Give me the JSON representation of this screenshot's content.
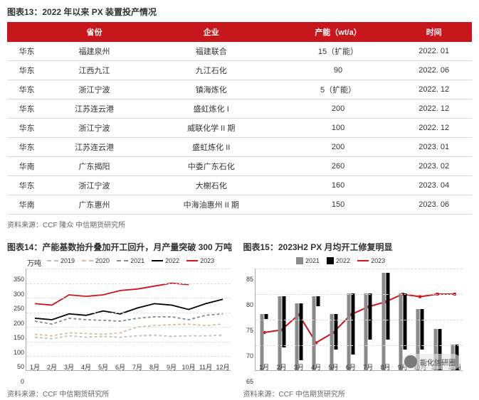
{
  "colors": {
    "red": "#c8161d",
    "grid": "#dddddd",
    "axis": "#aaaaaa",
    "series": {
      "2019": "#bfbfbf",
      "2020": "#d9bda3",
      "2021": "#8a8a8a",
      "2022": "#000000",
      "2023": "#c8161d"
    }
  },
  "table": {
    "title": "图表13：2022 年以来 PX 装置投产情况",
    "columns": [
      "",
      "省份",
      "企业",
      "产能（wt/a）",
      "时间"
    ],
    "rows": [
      [
        "华东",
        "福建泉州",
        "福建联合",
        "15（扩能）",
        "2022. 01"
      ],
      [
        "华东",
        "江西九江",
        "九江石化",
        "90",
        "2022. 06"
      ],
      [
        "华东",
        "浙江宁波",
        "镇海炼化",
        "5（扩能）",
        "2022. 12"
      ],
      [
        "华东",
        "江苏连云港",
        "盛虹炼化 I",
        "200",
        "2022. 12"
      ],
      [
        "华东",
        "浙江宁波",
        "威联化学 II 期",
        "100",
        "2022. 12"
      ],
      [
        "华东",
        "江苏连云港",
        "盛虹炼化 II",
        "200",
        "2023. 01"
      ],
      [
        "华南",
        "广东揭阳",
        "中委广东石化",
        "260",
        "2023. 02"
      ],
      [
        "华东",
        "浙江宁波",
        "大榭石化",
        "160",
        "2023. 04"
      ],
      [
        "华南",
        "广东惠州",
        "中海油惠州 II 期",
        "150",
        "2023. 06"
      ]
    ],
    "source": "资料来源：CCF 隆众  中信期货研究所"
  },
  "chart14": {
    "type": "line",
    "title": "图表14：产能基数抬升叠加开工回升，月产量突破 300 万吨",
    "y_unit": "万吨",
    "categories": [
      "1月",
      "2月",
      "3月",
      "4月",
      "5月",
      "6月",
      "7月",
      "8月",
      "9月",
      "10月",
      "11月",
      "12月"
    ],
    "ylim": [
      0,
      350
    ],
    "ytick_step": 50,
    "series": [
      {
        "name": "2019",
        "color": "#bfbfbf",
        "dash": true,
        "values": [
          115,
          110,
          120,
          115,
          118,
          115,
          120,
          122,
          118,
          120,
          120,
          122
        ]
      },
      {
        "name": "2020",
        "color": "#d9bda3",
        "dash": true,
        "values": [
          125,
          120,
          130,
          128,
          125,
          130,
          150,
          155,
          158,
          160,
          155,
          160
        ]
      },
      {
        "name": "2021",
        "color": "#8a8a8a",
        "dash": true,
        "values": [
          170,
          160,
          180,
          175,
          173,
          170,
          180,
          185,
          185,
          175,
          190,
          195
        ]
      },
      {
        "name": "2022",
        "color": "#000000",
        "dash": false,
        "values": [
          180,
          175,
          195,
          190,
          205,
          195,
          215,
          230,
          225,
          210,
          230,
          245
        ]
      },
      {
        "name": "2023",
        "color": "#c8161d",
        "dash": false,
        "values": [
          230,
          225,
          260,
          255,
          260,
          275,
          280,
          290,
          300,
          295,
          null,
          null
        ]
      }
    ],
    "source": "资料来源：CCF 中信期货研究所"
  },
  "chart15": {
    "type": "bar-line",
    "title": "图表15：2023H2 PX 月均开工修复明显",
    "categories": [
      "1月",
      "2月",
      "3月",
      "4月",
      "5月",
      "6月",
      "7月",
      "8月",
      "9月",
      "10月",
      "11月",
      "12月"
    ],
    "ylim": [
      65,
      85
    ],
    "ytick_step": 5,
    "bars": [
      {
        "name": "2021",
        "color": "#8a8a8a",
        "values": [
          76,
          79.5,
          78,
          79.5,
          76,
          80,
          80,
          84,
          80,
          77,
          73,
          70
        ]
      },
      {
        "name": "2022",
        "color": "#000000",
        "values": [
          66,
          75,
          76,
          67,
          72,
          77,
          74,
          78,
          76,
          73,
          73,
          70
        ]
      }
    ],
    "line": {
      "name": "2023",
      "color": "#c8161d",
      "values": [
        72.5,
        73,
        76,
        70.5,
        72.5,
        76,
        77.5,
        78.5,
        80,
        79.5,
        80,
        80
      ]
    },
    "source": "资料来源：CCF 中信期货研究所",
    "watermark": "能化信研圈"
  }
}
